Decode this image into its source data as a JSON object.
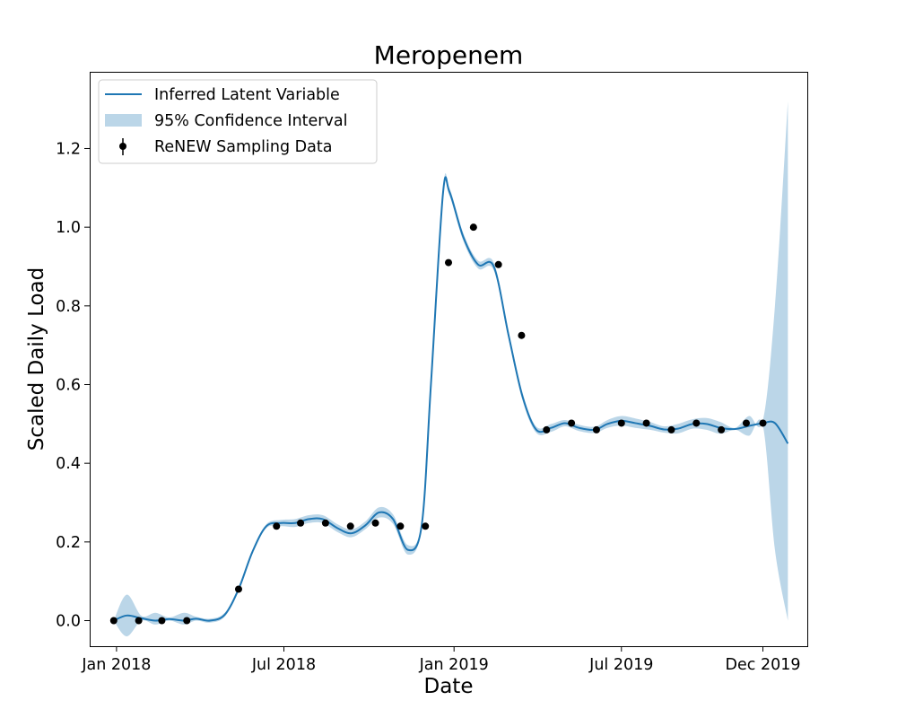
{
  "chart_data": {
    "type": "line",
    "title": "Meropenem",
    "xlabel": "Date",
    "ylabel": "Scaled Daily Load",
    "x_axis": {
      "type": "date",
      "range": [
        "2017-12-03",
        "2020-01-18"
      ],
      "ticks": [
        {
          "date": "2018-01-01",
          "label": "Jan 2018"
        },
        {
          "date": "2018-07-01",
          "label": "Jul 2018"
        },
        {
          "date": "2019-01-01",
          "label": "Jan 2019"
        },
        {
          "date": "2019-07-01",
          "label": "Jul 2019"
        },
        {
          "date": "2019-12-01",
          "label": "Dec 2019"
        }
      ]
    },
    "y_axis": {
      "range": [
        -0.065,
        1.395
      ],
      "ticks": [
        {
          "value": 0.0,
          "label": "0.0"
        },
        {
          "value": 0.2,
          "label": "0.2"
        },
        {
          "value": 0.4,
          "label": "0.4"
        },
        {
          "value": 0.6,
          "label": "0.6"
        },
        {
          "value": 0.8,
          "label": "0.8"
        },
        {
          "value": 1.0,
          "label": "1.0"
        },
        {
          "value": 1.2,
          "label": "1.2"
        }
      ]
    },
    "grid": false,
    "legend_position": "top-left",
    "colors": {
      "line": "#1f77b4",
      "band": "#1f77b4",
      "points": "#000000"
    },
    "series": [
      {
        "name": "Inferred Latent Variable",
        "kind": "line",
        "x": [
          "2017-12-29",
          "2018-01-12",
          "2018-01-28",
          "2018-02-12",
          "2018-02-27",
          "2018-03-15",
          "2018-03-28",
          "2018-04-12",
          "2018-04-28",
          "2018-05-13",
          "2018-05-28",
          "2018-06-12",
          "2018-06-28",
          "2018-07-13",
          "2018-07-28",
          "2018-08-12",
          "2018-08-28",
          "2018-09-12",
          "2018-09-27",
          "2018-10-12",
          "2018-10-27",
          "2018-11-12",
          "2018-11-27",
          "2018-12-07",
          "2018-12-20",
          "2018-12-27",
          "2019-01-11",
          "2019-01-27",
          "2019-02-13",
          "2019-03-01",
          "2019-03-16",
          "2019-03-31",
          "2019-04-16",
          "2019-05-01",
          "2019-05-16",
          "2019-06-02",
          "2019-06-16",
          "2019-07-01",
          "2019-07-16",
          "2019-08-01",
          "2019-08-16",
          "2019-08-31",
          "2019-09-16",
          "2019-10-01",
          "2019-10-16",
          "2019-11-01",
          "2019-11-16",
          "2019-12-01",
          "2019-12-14",
          "2019-12-28"
        ],
        "y": [
          0.0,
          0.013,
          0.006,
          0.0,
          0.004,
          0.0,
          0.005,
          0.0,
          0.015,
          0.08,
          0.175,
          0.24,
          0.248,
          0.248,
          0.258,
          0.258,
          0.235,
          0.222,
          0.242,
          0.275,
          0.258,
          0.18,
          0.242,
          0.6,
          1.085,
          1.09,
          0.975,
          0.905,
          0.9,
          0.725,
          0.57,
          0.485,
          0.49,
          0.502,
          0.49,
          0.485,
          0.5,
          0.508,
          0.502,
          0.495,
          0.486,
          0.488,
          0.5,
          0.5,
          0.49,
          0.487,
          0.495,
          0.502,
          0.502,
          0.45
        ]
      },
      {
        "name": "95% Confidence Interval",
        "kind": "band",
        "x": [
          "2017-12-29",
          "2018-01-12",
          "2018-01-28",
          "2018-02-12",
          "2018-02-27",
          "2018-03-15",
          "2018-03-28",
          "2018-04-12",
          "2018-04-28",
          "2018-05-13",
          "2018-05-28",
          "2018-06-12",
          "2018-06-28",
          "2018-07-13",
          "2018-07-28",
          "2018-08-12",
          "2018-08-28",
          "2018-09-12",
          "2018-09-27",
          "2018-10-12",
          "2018-10-27",
          "2018-11-12",
          "2018-11-27",
          "2018-12-07",
          "2018-12-20",
          "2018-12-27",
          "2019-01-11",
          "2019-01-27",
          "2019-02-13",
          "2019-03-01",
          "2019-03-16",
          "2019-03-31",
          "2019-04-16",
          "2019-05-01",
          "2019-05-16",
          "2019-06-02",
          "2019-06-16",
          "2019-07-01",
          "2019-07-16",
          "2019-08-01",
          "2019-08-16",
          "2019-08-31",
          "2019-09-16",
          "2019-10-01",
          "2019-10-16",
          "2019-11-01",
          "2019-11-16",
          "2019-12-01",
          "2019-12-14",
          "2019-12-28"
        ],
        "lower": [
          0.0,
          -0.04,
          0.0,
          -0.01,
          0.0,
          -0.01,
          0.0,
          -0.005,
          0.01,
          0.075,
          0.17,
          0.235,
          0.24,
          0.238,
          0.248,
          0.248,
          0.225,
          0.212,
          0.232,
          0.262,
          0.246,
          0.168,
          0.236,
          0.59,
          1.075,
          1.08,
          0.965,
          0.895,
          0.89,
          0.715,
          0.56,
          0.477,
          0.48,
          0.494,
          0.482,
          0.477,
          0.49,
          0.496,
          0.49,
          0.485,
          0.478,
          0.476,
          0.488,
          0.485,
          0.475,
          0.485,
          0.47,
          0.495,
          0.18,
          0.0
        ],
        "upper": [
          0.0,
          0.066,
          0.012,
          0.02,
          0.008,
          0.02,
          0.01,
          0.005,
          0.02,
          0.085,
          0.18,
          0.245,
          0.256,
          0.258,
          0.268,
          0.268,
          0.245,
          0.232,
          0.252,
          0.288,
          0.27,
          0.192,
          0.248,
          0.61,
          1.095,
          1.1,
          0.985,
          0.915,
          0.91,
          0.735,
          0.58,
          0.493,
          0.5,
          0.51,
          0.498,
          0.493,
          0.51,
          0.52,
          0.514,
          0.505,
          0.494,
          0.5,
          0.512,
          0.515,
          0.505,
          0.49,
          0.52,
          0.509,
          0.8,
          1.32
        ]
      },
      {
        "name": "ReNEW Sampling Data",
        "kind": "points",
        "x": [
          "2017-12-29",
          "2018-01-25",
          "2018-02-19",
          "2018-03-18",
          "2018-05-13",
          "2018-06-23",
          "2018-07-19",
          "2018-08-15",
          "2018-09-11",
          "2018-10-08",
          "2018-11-04",
          "2018-12-01",
          "2018-12-26",
          "2019-01-22",
          "2019-02-18",
          "2019-03-15",
          "2019-04-11",
          "2019-05-08",
          "2019-06-04",
          "2019-07-01",
          "2019-07-28",
          "2019-08-24",
          "2019-09-20",
          "2019-10-17",
          "2019-11-13",
          "2019-12-01"
        ],
        "y": [
          0.0,
          0.0,
          0.0,
          0.0,
          0.08,
          0.24,
          0.248,
          0.248,
          0.24,
          0.248,
          0.24,
          0.24,
          0.91,
          1.0,
          0.905,
          0.725,
          0.485,
          0.502,
          0.485,
          0.502,
          0.502,
          0.485,
          0.502,
          0.485,
          0.502,
          0.502
        ]
      }
    ]
  }
}
